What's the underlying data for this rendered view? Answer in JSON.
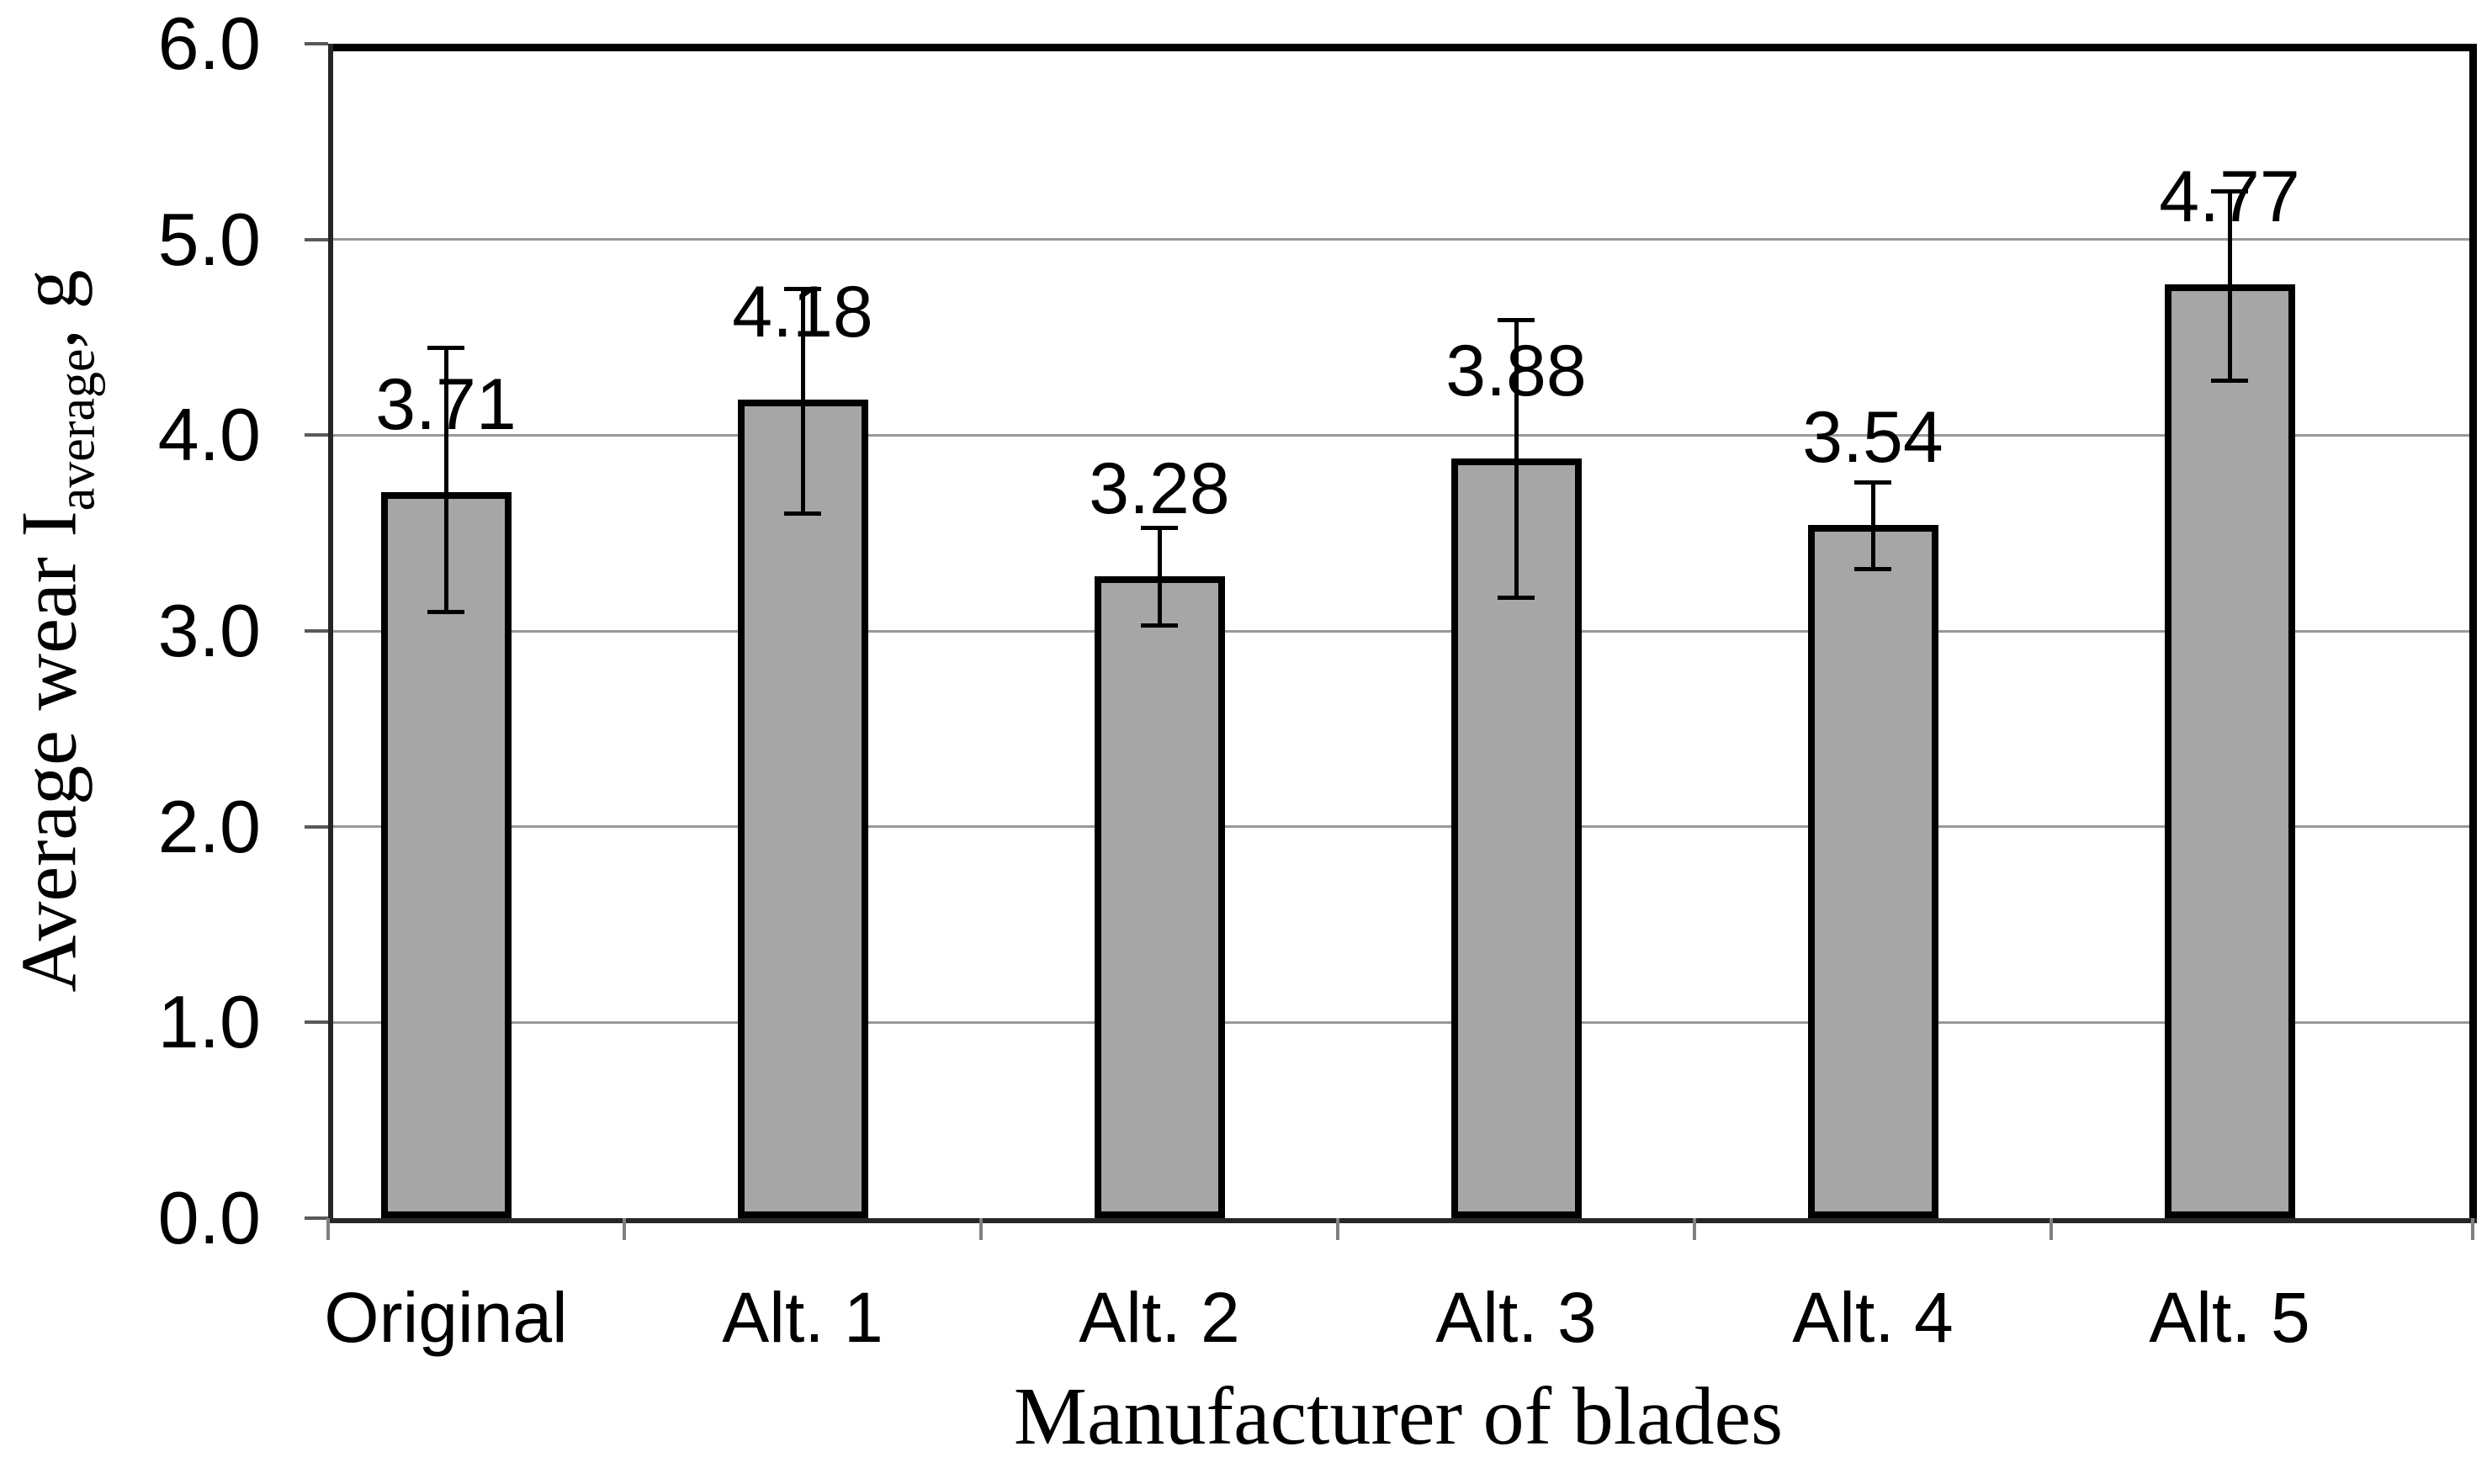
{
  "chart_data": {
    "type": "bar",
    "title": "",
    "categories": [
      "Original",
      "Alt. 1",
      "Alt. 2",
      "Alt. 3",
      "Alt. 4",
      "Alt. 5"
    ],
    "series": [
      {
        "name": "Average wear",
        "values": [
          3.71,
          4.18,
          3.28,
          3.88,
          3.54,
          4.77
        ],
        "data_labels": [
          "3.71",
          "4.18",
          "3.28",
          "3.88",
          "3.54",
          "4.77"
        ],
        "error_low": [
          3.1,
          3.6,
          3.03,
          3.17,
          3.32,
          4.28
        ],
        "error_high": [
          4.45,
          4.75,
          3.53,
          4.59,
          3.76,
          5.25
        ]
      }
    ],
    "xlabel": "Manufacturer of blades",
    "ylabel_parts": {
      "prefix": "Average wear I",
      "subscript": "average",
      "suffix": ", g"
    },
    "ylim": [
      0.0,
      6.0
    ],
    "ytick_step": 1.0,
    "ytick_labels": [
      "0.0",
      "1.0",
      "2.0",
      "3.0",
      "4.0",
      "5.0",
      "6.0"
    ],
    "grid": true,
    "legend": "none",
    "bar_fill_color": "#a6a6a6",
    "bar_border_color": "#000000",
    "gridline_color": "#999999"
  }
}
